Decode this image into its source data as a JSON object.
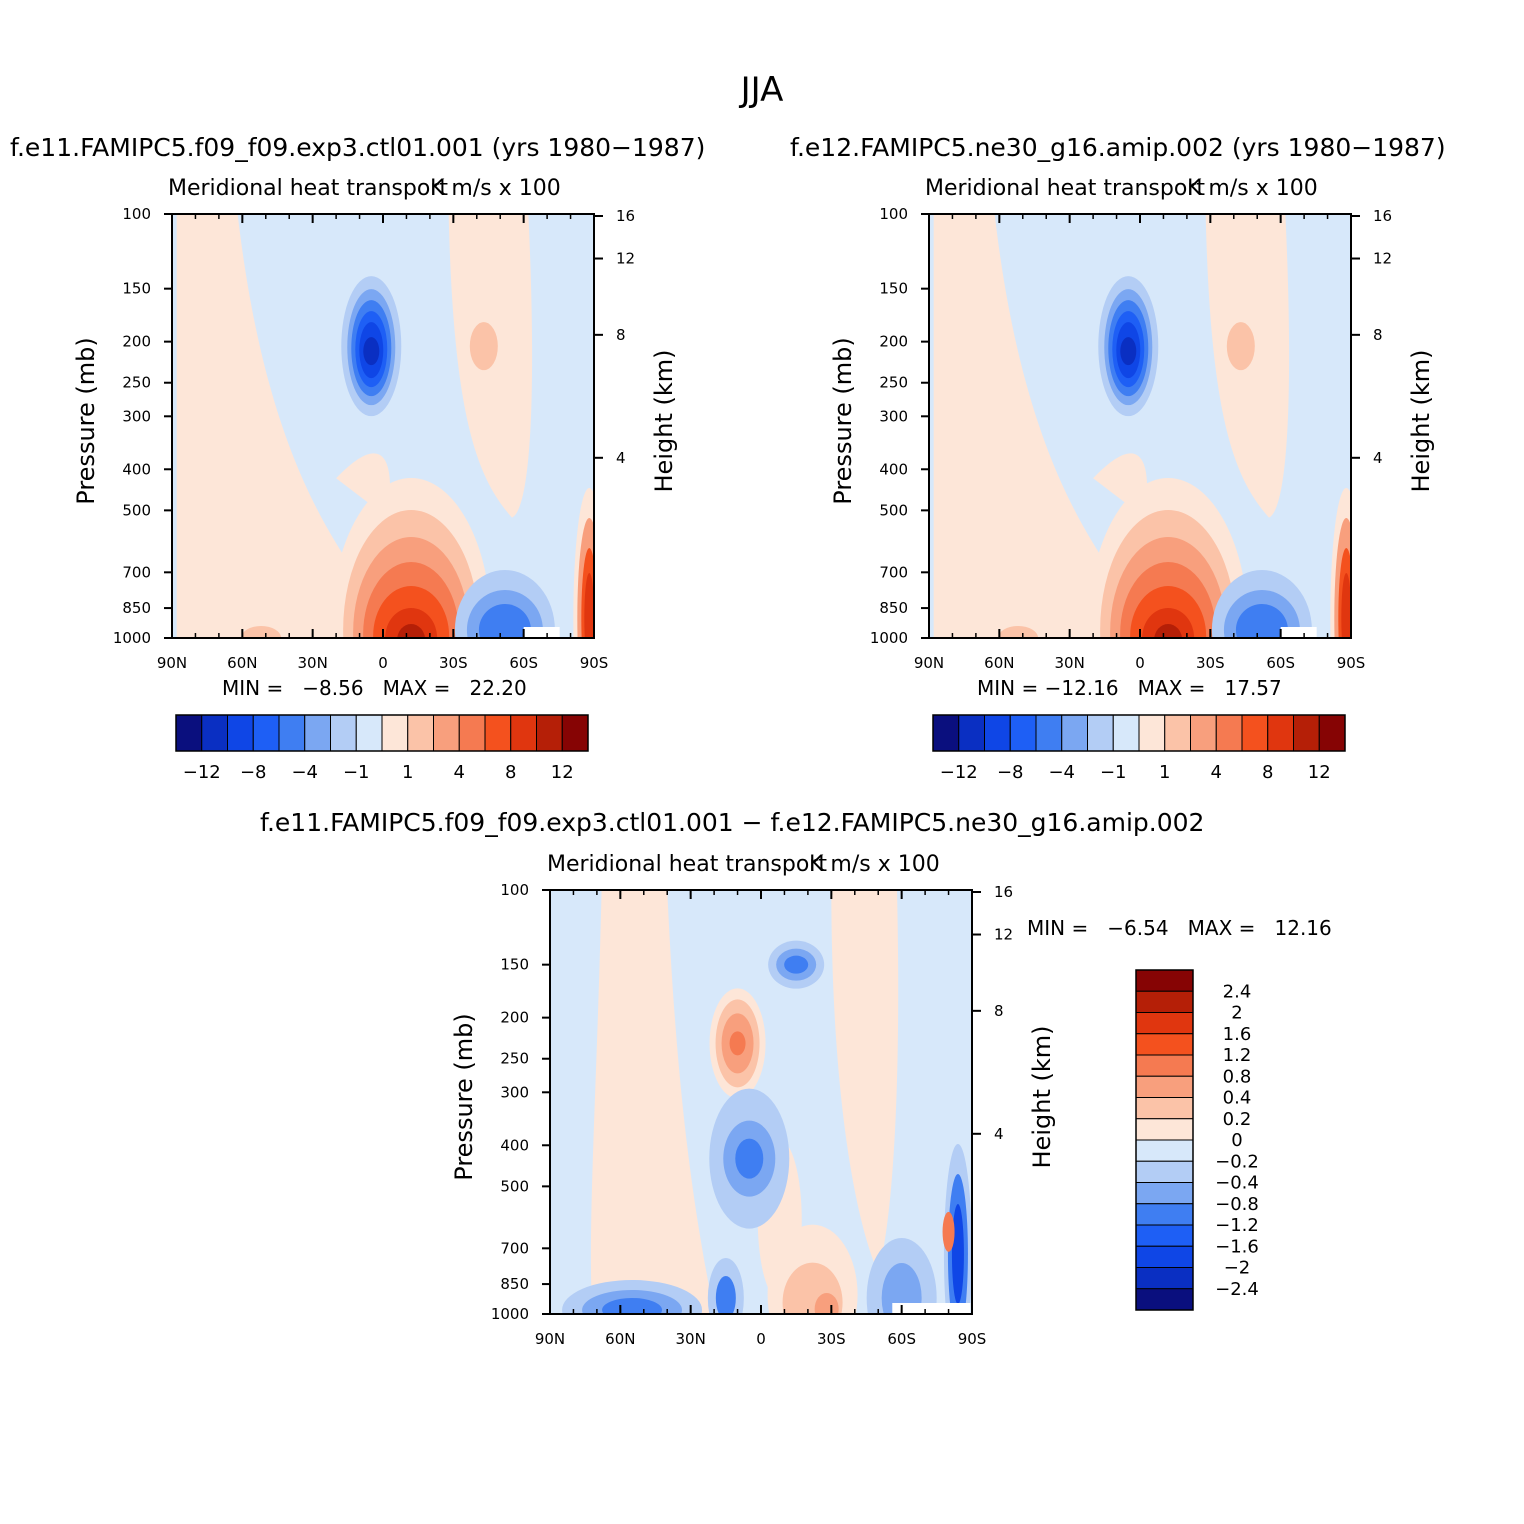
{
  "figure": {
    "title": "JJA"
  },
  "colors": {
    "palette12": [
      "#0a0f7e",
      "#0a2fc2",
      "#0f46e6",
      "#1e5ff5",
      "#3f7ef2",
      "#7ba7f2",
      "#b3cdf5",
      "#d7e8fa",
      "#fde6d8",
      "#fbc3a8",
      "#f89f7d",
      "#f57a51",
      "#f4511e",
      "#e0360f",
      "#b51f07",
      "#860404"
    ],
    "paletteDiff": [
      "#0a0f7e",
      "#0a2fc2",
      "#0f46e6",
      "#1e5ff5",
      "#3f7ef2",
      "#7ba7f2",
      "#b3cdf5",
      "#d7e8fa",
      "#fde6d8",
      "#fbc3a8",
      "#f89f7d",
      "#f57a51",
      "#f4511e",
      "#e0360f",
      "#b51f07",
      "#860404"
    ]
  },
  "panels": [
    {
      "id": "left",
      "title": "f.e11.FAMIPC5.f09_f09.exp3.ctl01.001 (yrs 1980−1987)",
      "subtitle": "Meridional heat transport",
      "units": "K m/s x 100",
      "min_label": "MIN =   −8.56   MAX =   22.20",
      "y_left_label": "Pressure (mb)",
      "y_right_label": "Height (km)"
    },
    {
      "id": "right",
      "title": "f.e12.FAMIPC5.ne30_g16.amip.002 (yrs 1980−1987)",
      "subtitle": "Meridional heat transport",
      "units": "K m/s x 100",
      "min_label": "MIN = −12.16   MAX =   17.57",
      "y_left_label": "Pressure (mb)",
      "y_right_label": "Height (km)"
    },
    {
      "id": "diff",
      "title": "f.e11.FAMIPC5.f09_f09.exp3.ctl01.001 − f.e12.FAMIPC5.ne30_g16.amip.002",
      "subtitle": "Meridional heat transport",
      "units": "K m/s x 100",
      "min_label": "MIN =   −6.54   MAX =   12.16",
      "y_left_label": "Pressure (mb)",
      "y_right_label": "Height (km)"
    }
  ],
  "colorbar_labels": [
    "−12",
    "−8",
    "−4",
    "−1",
    "1",
    "4",
    "8",
    "12"
  ],
  "colorbar_diff_labels": [
    "2.4",
    "2",
    "1.6",
    "1.2",
    "0.8",
    "0.4",
    "0.2",
    "0",
    "−0.2",
    "−0.4",
    "−0.8",
    "−1.2",
    "−1.6",
    "−2",
    "−2.4"
  ],
  "chart_data": [
    {
      "type": "heatmap",
      "title": "f.e11.FAMIPC5.f09_f09.exp3.ctl01.001 (yrs 1980−1987)",
      "xlabel": "",
      "ylabel": "Pressure (mb)",
      "y2label": "Height (km)",
      "x_ticks": [
        "90N",
        "60N",
        "30N",
        "0",
        "30S",
        "60S",
        "90S"
      ],
      "y_ticks": [
        100,
        150,
        200,
        250,
        300,
        400,
        500,
        700,
        850,
        1000
      ],
      "y2_ticks": [
        16,
        12,
        8,
        4
      ],
      "xlim": [
        90,
        -90
      ],
      "ylim": [
        1000,
        100
      ],
      "y_scale": "log",
      "contour_levels": [
        -12,
        -10,
        -8,
        -6,
        -4,
        -2,
        -1,
        1,
        2,
        4,
        6,
        8,
        10,
        12
      ],
      "min": -8.56,
      "max": 22.2,
      "features": [
        {
          "x": 5,
          "y": 200,
          "value": -8
        },
        {
          "x": -12,
          "y": 960,
          "value": 16
        },
        {
          "x": -45,
          "y": 200,
          "value": 2
        },
        {
          "x": -52,
          "y": 950,
          "value": -4
        },
        {
          "x": -88,
          "y": 900,
          "value": 8
        }
      ]
    },
    {
      "type": "heatmap",
      "title": "f.e12.FAMIPC5.ne30_g16.amip.002 (yrs 1980−1987)",
      "xlabel": "",
      "ylabel": "Pressure (mb)",
      "y2label": "Height (km)",
      "x_ticks": [
        "90N",
        "60N",
        "30N",
        "0",
        "30S",
        "60S",
        "90S"
      ],
      "y_ticks": [
        100,
        150,
        200,
        250,
        300,
        400,
        500,
        700,
        850,
        1000
      ],
      "y2_ticks": [
        16,
        12,
        8,
        4
      ],
      "xlim": [
        90,
        -90
      ],
      "ylim": [
        1000,
        100
      ],
      "y_scale": "log",
      "contour_levels": [
        -12,
        -10,
        -8,
        -6,
        -4,
        -2,
        -1,
        1,
        2,
        4,
        6,
        8,
        10,
        12
      ],
      "min": -12.16,
      "max": 17.57,
      "features": [
        {
          "x": 5,
          "y": 200,
          "value": -11
        },
        {
          "x": -12,
          "y": 960,
          "value": 14
        },
        {
          "x": -42,
          "y": 200,
          "value": 2
        },
        {
          "x": -52,
          "y": 950,
          "value": -4
        },
        {
          "x": -88,
          "y": 900,
          "value": 8
        }
      ]
    },
    {
      "type": "heatmap",
      "title": "f.e11.FAMIPC5.f09_f09.exp3.ctl01.001 − f.e12.FAMIPC5.ne30_g16.amip.002",
      "xlabel": "",
      "ylabel": "Pressure (mb)",
      "y2label": "Height (km)",
      "x_ticks": [
        "90N",
        "60N",
        "30N",
        "0",
        "30S",
        "60S",
        "90S"
      ],
      "y_ticks": [
        100,
        150,
        200,
        250,
        300,
        400,
        500,
        700,
        850,
        1000
      ],
      "y2_ticks": [
        16,
        12,
        8,
        4
      ],
      "xlim": [
        90,
        -90
      ],
      "ylim": [
        1000,
        100
      ],
      "y_scale": "log",
      "contour_levels": [
        -2.4,
        -2,
        -1.6,
        -1.2,
        -0.8,
        -0.4,
        -0.2,
        0,
        0.2,
        0.4,
        0.8,
        1.2,
        1.6,
        2,
        2.4
      ],
      "min": -6.54,
      "max": 12.16,
      "features": [
        {
          "x": 8,
          "y": 220,
          "value": 1.2
        },
        {
          "x": -15,
          "y": 150,
          "value": -0.8
        },
        {
          "x": 10,
          "y": 430,
          "value": -0.8
        },
        {
          "x": -22,
          "y": 960,
          "value": 0.8
        },
        {
          "x": 60,
          "y": 970,
          "value": -1.2
        },
        {
          "x": 15,
          "y": 950,
          "value": -1.2
        },
        {
          "x": -85,
          "y": 850,
          "value": -1.6
        }
      ]
    }
  ]
}
